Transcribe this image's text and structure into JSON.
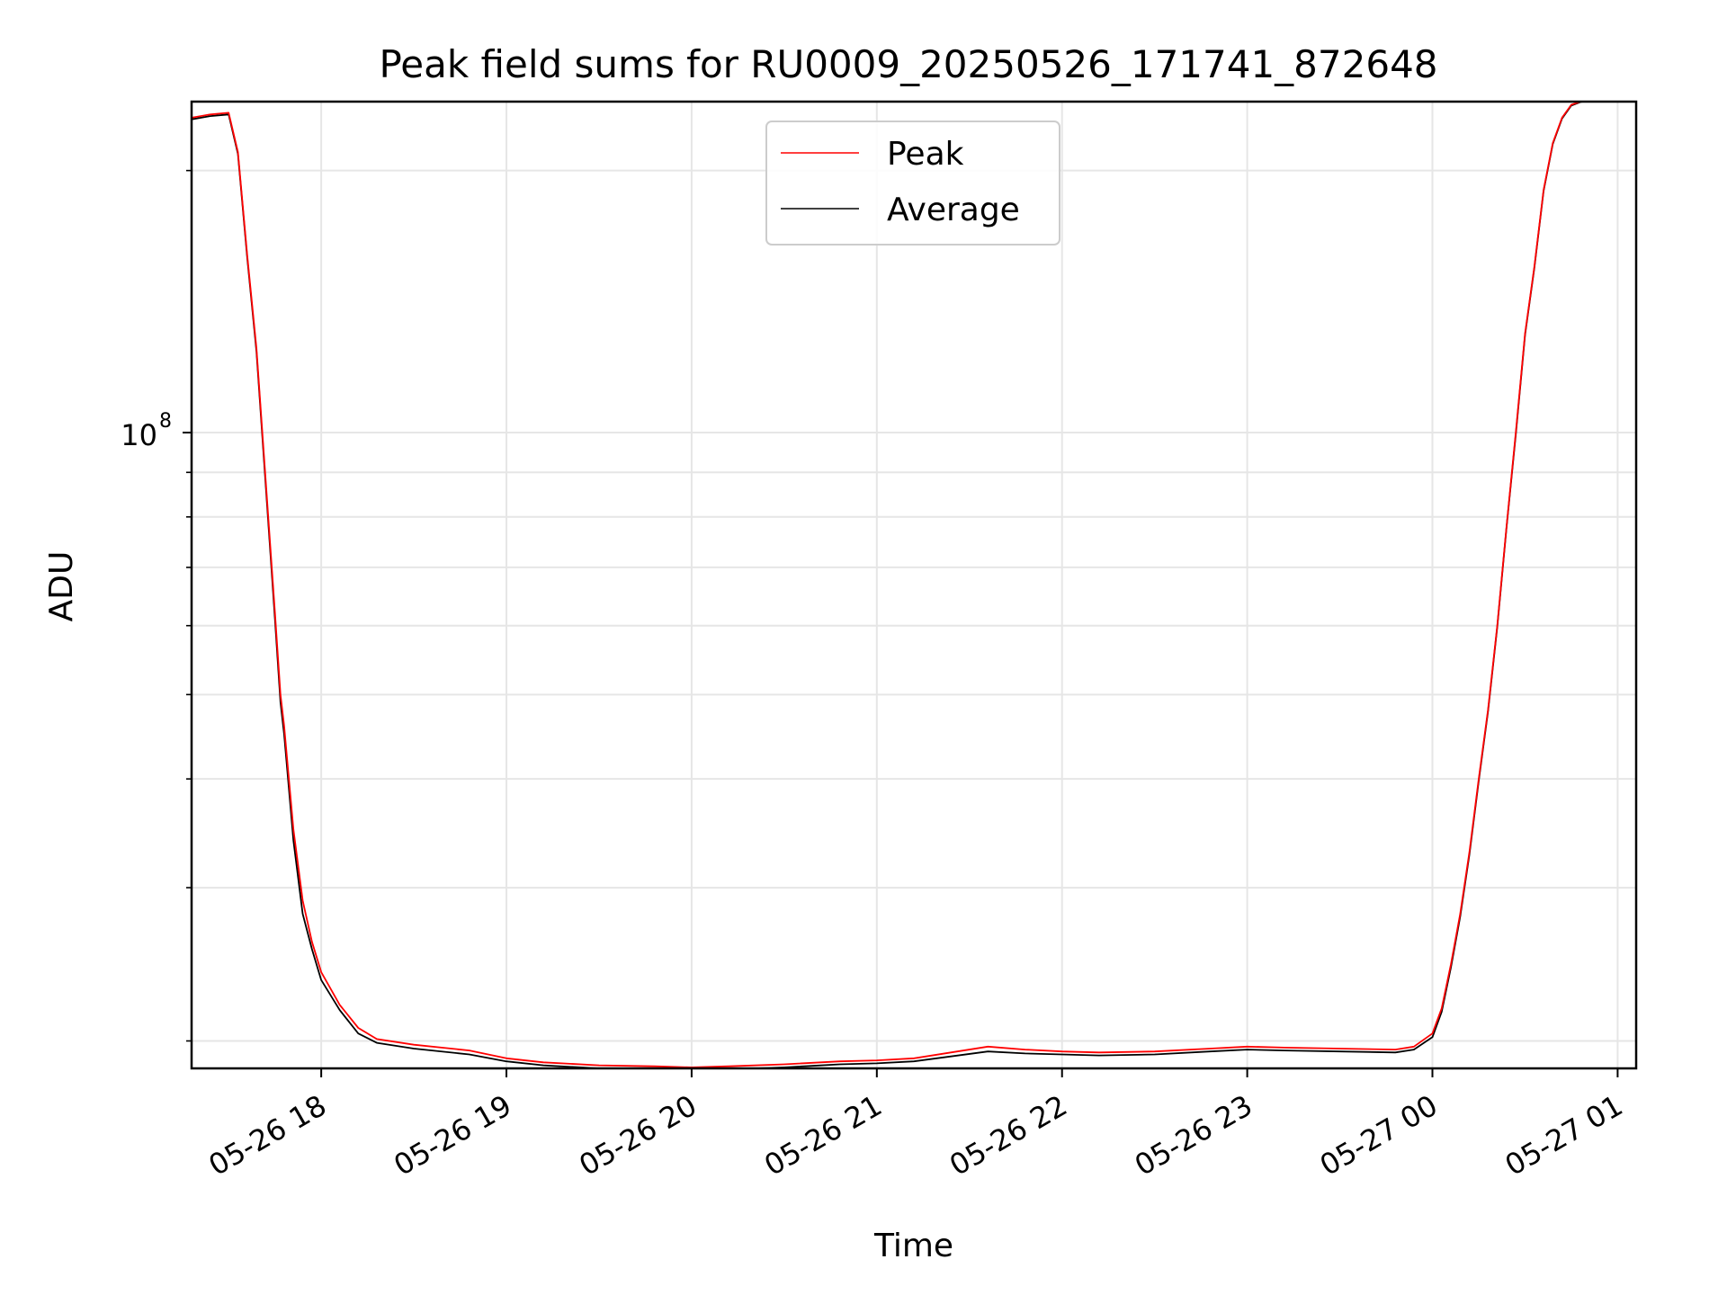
{
  "chart_data": {
    "type": "line",
    "title": "Peak field sums for RU0009_20250526_171741_872648",
    "xlabel": "Time",
    "ylabel": "ADU",
    "yscale": "log",
    "xlim": [
      17.3,
      25.1
    ],
    "ylim": [
      18600000,
      240000000
    ],
    "x_ticks": [
      {
        "value": 18,
        "label": "05-26 18"
      },
      {
        "value": 19,
        "label": "05-26 19"
      },
      {
        "value": 20,
        "label": "05-26 20"
      },
      {
        "value": 21,
        "label": "05-26 21"
      },
      {
        "value": 22,
        "label": "05-26 22"
      },
      {
        "value": 23,
        "label": "05-26 23"
      },
      {
        "value": 24,
        "label": "05-27 00"
      },
      {
        "value": 25,
        "label": "05-27 01"
      }
    ],
    "y_major_ticks": [
      {
        "value": 100000000,
        "base": "10",
        "exponent": "8"
      }
    ],
    "y_minor_ticks": [
      20000000,
      30000000,
      40000000,
      50000000,
      60000000,
      70000000,
      80000000,
      90000000,
      200000000
    ],
    "grid": true,
    "legend_position": "upper-center",
    "series": [
      {
        "name": "Peak",
        "color": "#ff0000",
        "x": [
          17.3,
          17.4,
          17.5,
          17.55,
          17.6,
          17.65,
          17.7,
          17.75,
          17.78,
          17.8,
          17.85,
          17.9,
          17.95,
          18.0,
          18.1,
          18.2,
          18.3,
          18.5,
          18.8,
          19.0,
          19.2,
          19.5,
          19.8,
          20.0,
          20.2,
          20.5,
          20.8,
          21.0,
          21.2,
          21.4,
          21.6,
          21.8,
          22.0,
          22.2,
          22.5,
          22.8,
          23.0,
          23.2,
          23.5,
          23.8,
          23.9,
          24.0,
          24.05,
          24.1,
          24.15,
          24.2,
          24.25,
          24.3,
          24.35,
          24.4,
          24.45,
          24.5,
          24.55,
          24.6,
          24.65,
          24.7,
          24.75,
          24.8,
          24.85,
          24.9
        ],
        "values": [
          230000000,
          232000000,
          233000000,
          210000000,
          160000000,
          125000000,
          88000000,
          62000000,
          50000000,
          46000000,
          35000000,
          29000000,
          26000000,
          24000000,
          22000000,
          20700000,
          20100000,
          19800000,
          19500000,
          19100000,
          18900000,
          18750000,
          18700000,
          18650000,
          18700000,
          18800000,
          18950000,
          19000000,
          19100000,
          19400000,
          19700000,
          19550000,
          19450000,
          19400000,
          19450000,
          19600000,
          19700000,
          19650000,
          19600000,
          19550000,
          19700000,
          20400000,
          21800000,
          24500000,
          28000000,
          33000000,
          40000000,
          48000000,
          60000000,
          78000000,
          100000000,
          130000000,
          155000000,
          190000000,
          215000000,
          230000000,
          238000000,
          240000000,
          241000000,
          241000000
        ]
      },
      {
        "name": "Average",
        "color": "#000000",
        "x": [
          17.3,
          17.4,
          17.5,
          17.55,
          17.6,
          17.65,
          17.7,
          17.75,
          17.78,
          17.8,
          17.85,
          17.9,
          17.95,
          18.0,
          18.1,
          18.2,
          18.3,
          18.5,
          18.8,
          19.0,
          19.2,
          19.5,
          19.8,
          20.0,
          20.2,
          20.5,
          20.8,
          21.0,
          21.2,
          21.4,
          21.6,
          21.8,
          22.0,
          22.2,
          22.5,
          22.8,
          23.0,
          23.2,
          23.5,
          23.8,
          23.9,
          24.0,
          24.05,
          24.1,
          24.15,
          24.2,
          24.25,
          24.3,
          24.35,
          24.4,
          24.45,
          24.5,
          24.55,
          24.6,
          24.65,
          24.7,
          24.75,
          24.8,
          24.85,
          24.9
        ],
        "values": [
          229000000,
          231000000,
          232000000,
          209000000,
          159000000,
          124000000,
          87000000,
          61000000,
          49000000,
          45000000,
          34000000,
          28000000,
          25500000,
          23500000,
          21700000,
          20400000,
          19900000,
          19600000,
          19300000,
          18950000,
          18750000,
          18600000,
          18550000,
          18500000,
          18550000,
          18650000,
          18800000,
          18850000,
          18950000,
          19200000,
          19450000,
          19350000,
          19300000,
          19250000,
          19300000,
          19450000,
          19550000,
          19500000,
          19450000,
          19400000,
          19550000,
          20200000,
          21600000,
          24300000,
          27800000,
          32800000,
          39800000,
          47800000,
          59800000,
          77800000,
          99500000,
          129500000,
          154500000,
          189500000,
          214500000,
          229500000,
          237500000,
          239800000,
          240500000,
          240500000
        ]
      }
    ]
  }
}
